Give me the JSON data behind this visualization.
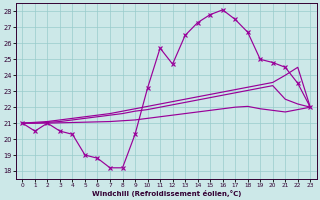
{
  "xlabel": "Windchill (Refroidissement éolien,°C)",
  "background_color": "#cce8e8",
  "grid_color": "#99cccc",
  "line_color": "#990099",
  "xlim": [
    -0.5,
    23.5
  ],
  "ylim": [
    17.5,
    28.5
  ],
  "yticks": [
    18,
    19,
    20,
    21,
    22,
    23,
    24,
    25,
    26,
    27,
    28
  ],
  "xticks": [
    0,
    1,
    2,
    3,
    4,
    5,
    6,
    7,
    8,
    9,
    10,
    11,
    12,
    13,
    14,
    15,
    16,
    17,
    18,
    19,
    20,
    21,
    22,
    23
  ],
  "hours": [
    0,
    1,
    2,
    3,
    4,
    5,
    6,
    7,
    8,
    9,
    10,
    11,
    12,
    13,
    14,
    15,
    16,
    17,
    18,
    19,
    20,
    21,
    22,
    23
  ],
  "temp_main": [
    21.0,
    20.5,
    21.0,
    20.5,
    20.3,
    19.0,
    18.8,
    18.2,
    18.2,
    20.3,
    23.2,
    25.7,
    24.7,
    26.5,
    27.3,
    27.8,
    28.1,
    27.5,
    26.7,
    25.0,
    24.8,
    24.5,
    23.5,
    22.0
  ],
  "temp_line_upper": [
    21.0,
    21.05,
    21.1,
    21.2,
    21.3,
    21.4,
    21.5,
    21.6,
    21.75,
    21.9,
    22.05,
    22.2,
    22.35,
    22.5,
    22.65,
    22.8,
    22.95,
    23.1,
    23.25,
    23.4,
    23.55,
    24.0,
    24.5,
    22.0
  ],
  "temp_line_mid": [
    21.0,
    21.0,
    21.05,
    21.1,
    21.2,
    21.3,
    21.4,
    21.5,
    21.6,
    21.75,
    21.85,
    22.0,
    22.15,
    22.3,
    22.45,
    22.6,
    22.75,
    22.9,
    23.05,
    23.2,
    23.35,
    22.5,
    22.2,
    22.0
  ],
  "temp_line_lower": [
    21.0,
    21.0,
    21.0,
    21.02,
    21.04,
    21.06,
    21.08,
    21.1,
    21.15,
    21.2,
    21.3,
    21.4,
    21.5,
    21.6,
    21.7,
    21.8,
    21.9,
    22.0,
    22.05,
    21.9,
    21.8,
    21.7,
    21.85,
    22.0
  ]
}
